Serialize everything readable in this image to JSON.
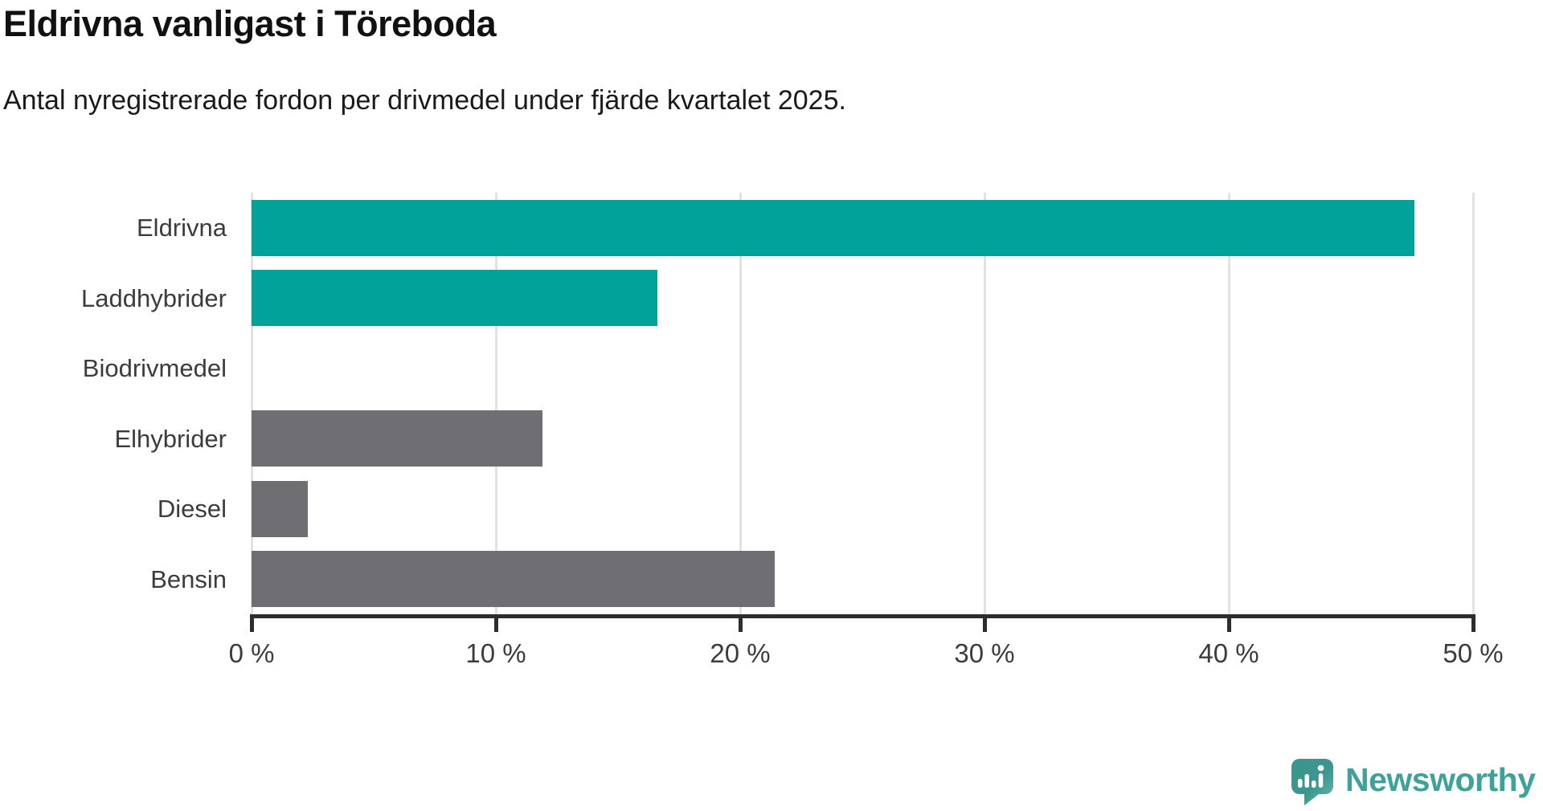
{
  "header": {
    "title": "Eldrivna vanligast i Töreboda",
    "subtitle": "Antal nyregistrerade fordon per drivmedel under fjärde kvartalet 2025."
  },
  "chart_data": {
    "type": "bar",
    "orientation": "horizontal",
    "title": "Eldrivna vanligast i Töreboda",
    "subtitle": "Antal nyregistrerade fordon per drivmedel under fjärde kvartalet 2025.",
    "categories": [
      "Eldrivna",
      "Laddhybrider",
      "Biodrivmedel",
      "Elhybrider",
      "Diesel",
      "Bensin"
    ],
    "values": [
      47.6,
      16.6,
      0,
      11.9,
      2.3,
      21.4
    ],
    "unit": "%",
    "bar_colors": [
      "#00a29a",
      "#00a29a",
      "#00a29a",
      "#6e6e73",
      "#6e6e73",
      "#6e6e73"
    ],
    "xlim": [
      0,
      50
    ],
    "x_ticks": [
      0,
      10,
      20,
      30,
      40,
      50
    ],
    "x_tick_labels": [
      "0 %",
      "10 %",
      "20 %",
      "30 %",
      "40 %",
      "50 %"
    ],
    "grid": true,
    "legend": false,
    "xlabel": "",
    "ylabel": ""
  },
  "colors": {
    "teal": "#00a29a",
    "gray": "#6e6e73",
    "axis": "#2d2d2d",
    "gridline": "#e2e2e2",
    "brand_teal": "#3ea19a"
  },
  "footer": {
    "brand": "Newsworthy"
  }
}
